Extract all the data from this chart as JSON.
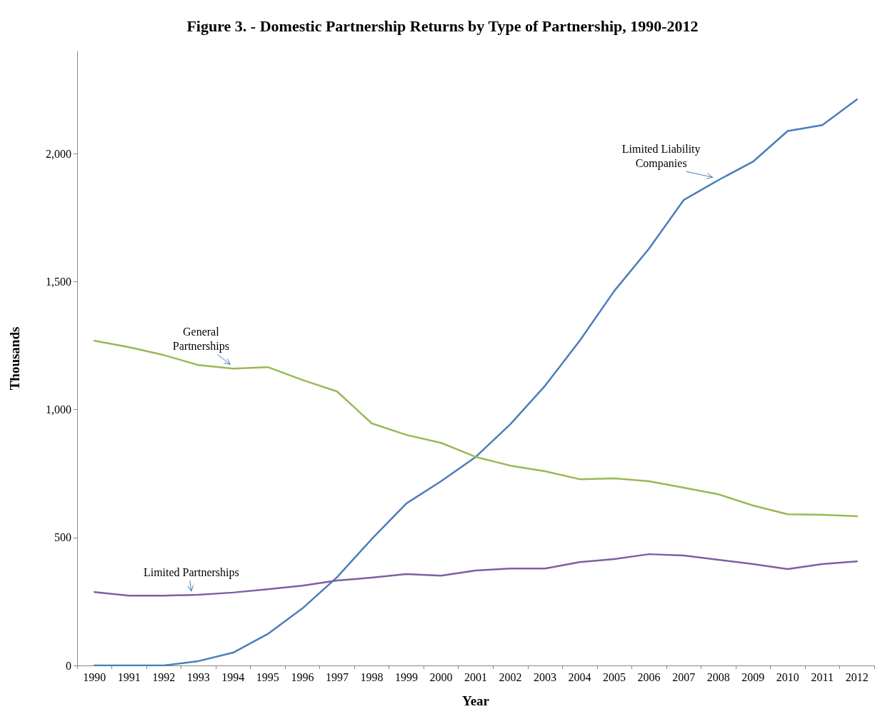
{
  "chart_data": {
    "type": "line",
    "title": "Figure 3. - Domestic Partnership Returns by Type of Partnership, 1990-2012",
    "xlabel": "Year",
    "ylabel": "Thousands",
    "categories": [
      "1990",
      "1991",
      "1992",
      "1993",
      "1994",
      "1995",
      "1996",
      "1997",
      "1998",
      "1999",
      "2000",
      "2001",
      "2002",
      "2003",
      "2004",
      "2005",
      "2006",
      "2007",
      "2008",
      "2009",
      "2010",
      "2011",
      "2012"
    ],
    "series": [
      {
        "name": "Limited Liability Companies",
        "color": "#4a7ebb",
        "values": [
          0,
          0,
          0,
          17,
          50,
          123,
          223,
          345,
          494,
          633,
          720,
          815,
          943,
          1093,
          1269,
          1464,
          1629,
          1819,
          1897,
          1969,
          2089,
          2112,
          2212
        ]
      },
      {
        "name": "General Partnerships",
        "color": "#98b954",
        "values": [
          1269,
          1244,
          1213,
          1174,
          1160,
          1166,
          1116,
          1071,
          946,
          901,
          870,
          815,
          781,
          759,
          728,
          731,
          720,
          695,
          669,
          625,
          591,
          589,
          583
        ]
      },
      {
        "name": "Limited Partnerships",
        "color": "#7d60a0",
        "values": [
          287,
          273,
          273,
          276,
          285,
          298,
          312,
          332,
          343,
          357,
          351,
          371,
          379,
          379,
          404,
          416,
          435,
          430,
          413,
          396,
          377,
          396,
          407
        ]
      }
    ],
    "ylim": [
      0,
      2400
    ],
    "yticks": [
      0,
      {
        "value": 500,
        "label": "500"
      },
      {
        "value": 1000,
        "label": "1,000"
      },
      {
        "value": 1500,
        "label": "1,500"
      },
      {
        "value": 2000,
        "label": "2,000"
      }
    ],
    "grid": false,
    "legend": false,
    "marker": "none",
    "line_style": "solid"
  }
}
